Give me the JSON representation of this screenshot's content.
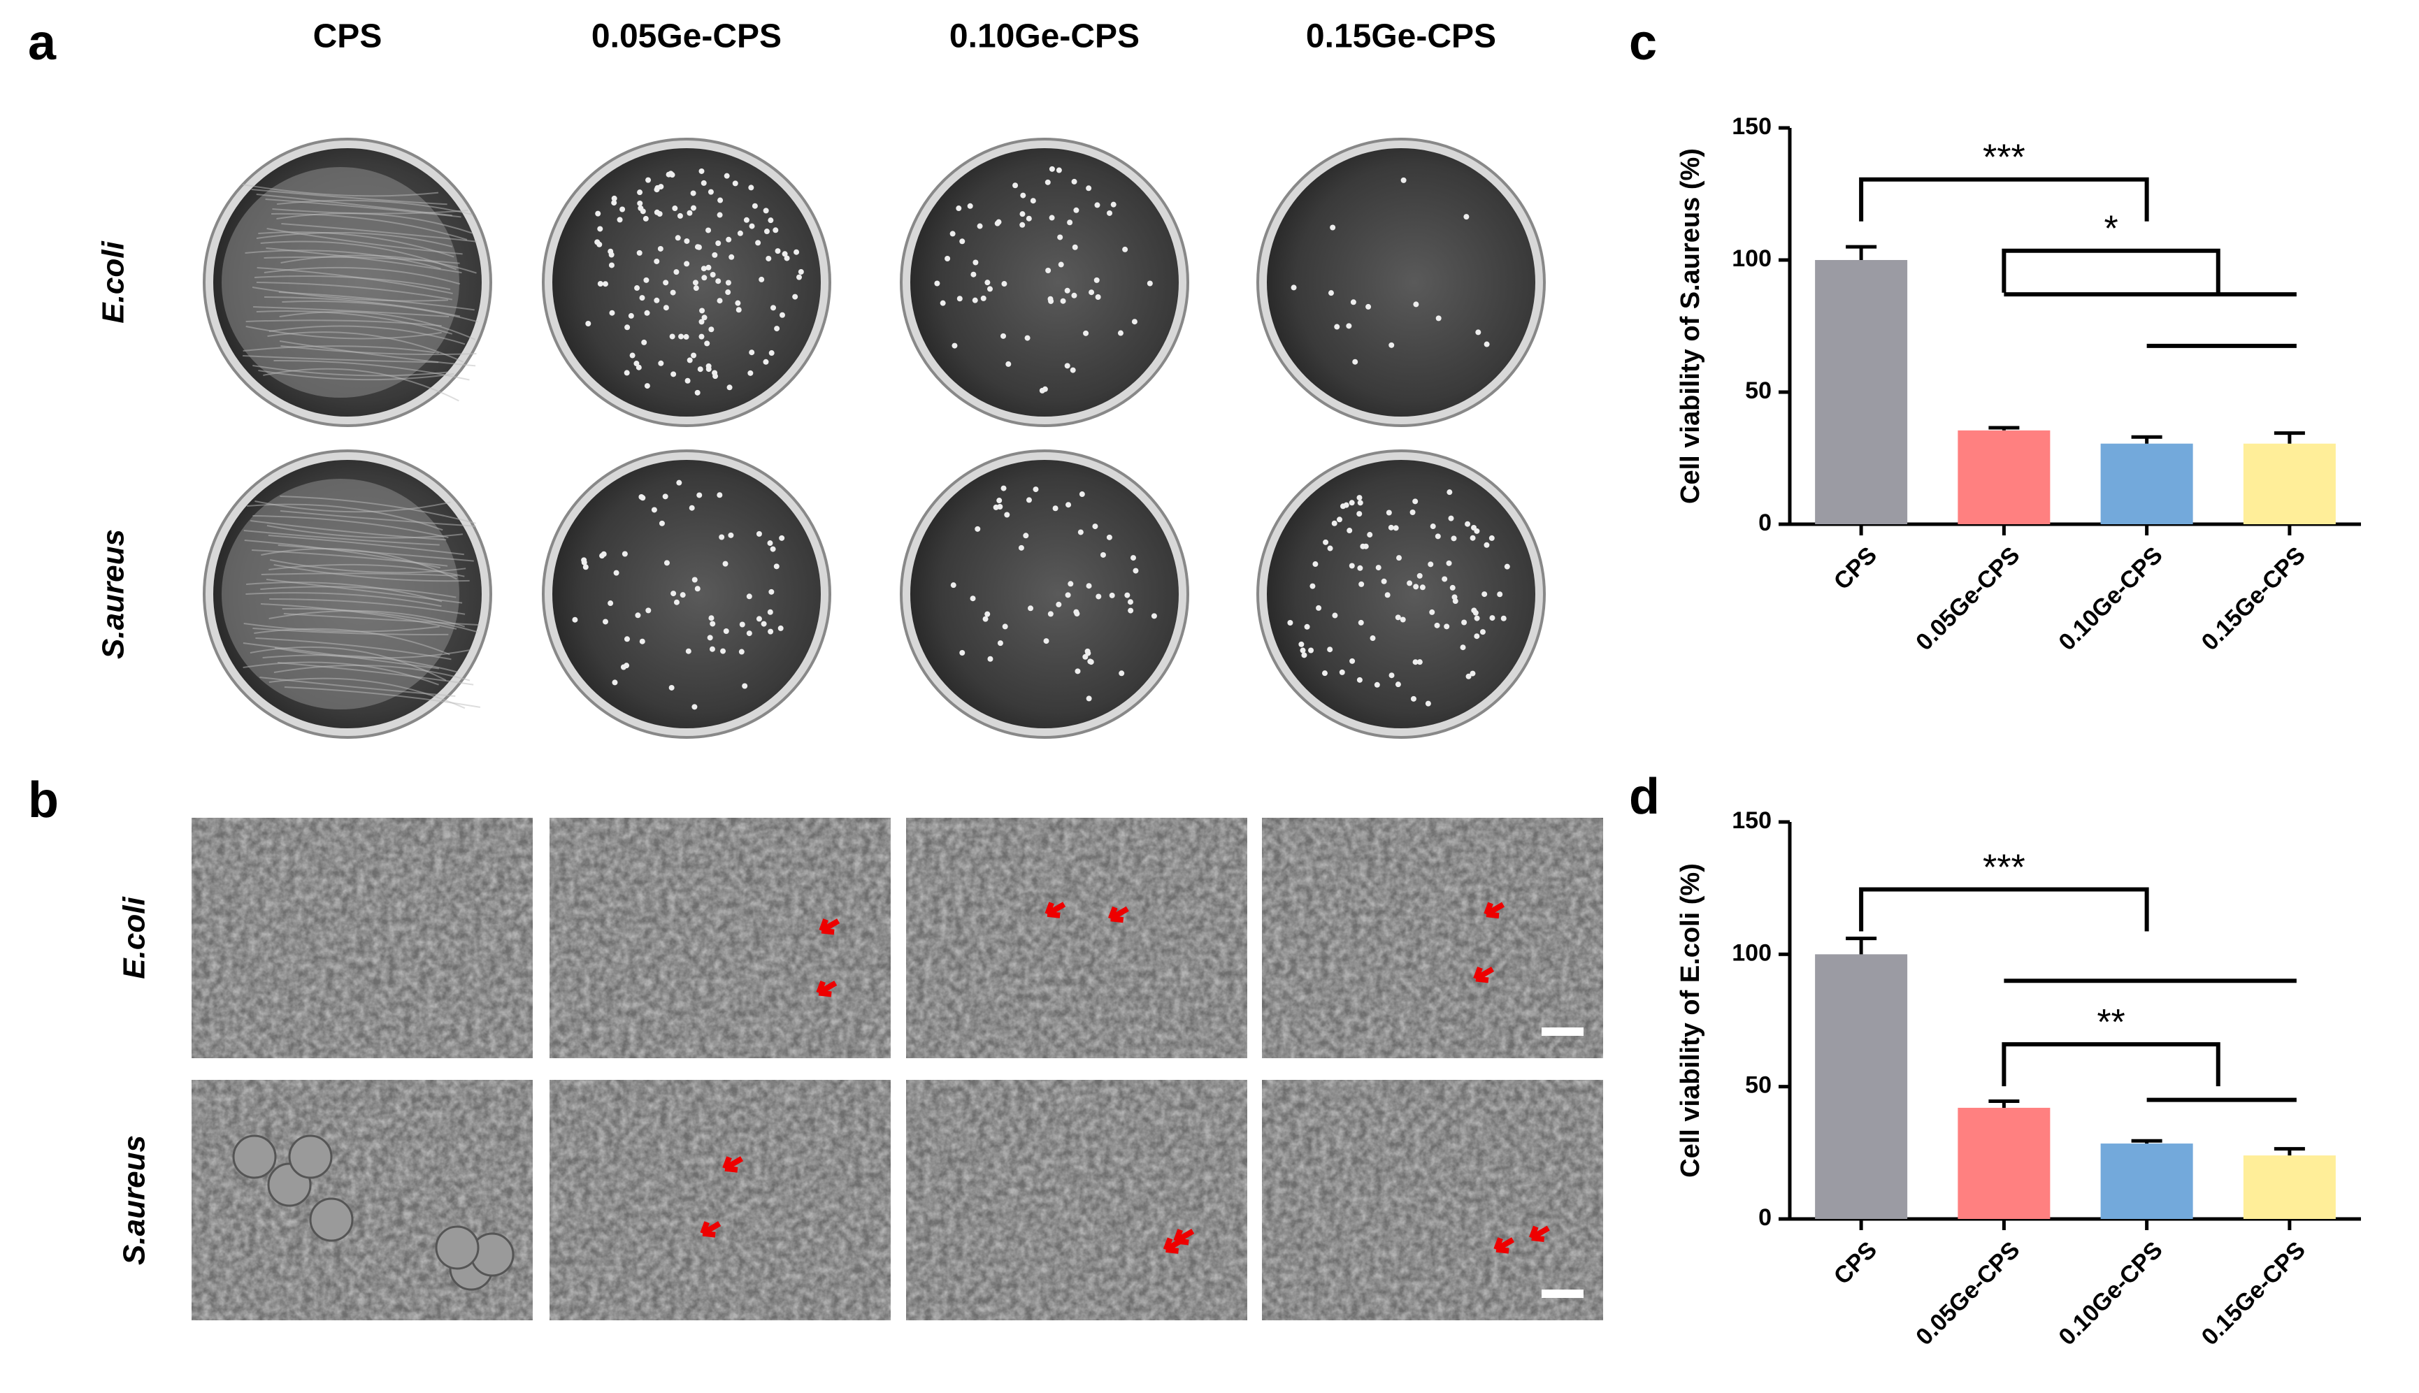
{
  "panels": {
    "a": "a",
    "b": "b",
    "c": "c",
    "d": "d"
  },
  "columns": [
    "CPS",
    "0.05Ge-CPS",
    "0.10Ge-CPS",
    "0.15Ge-CPS"
  ],
  "rows": [
    "E.coli",
    "S.aureus"
  ],
  "chart_data": [
    {
      "type": "bar",
      "y_label": "Cell viability of S.aureus (%)",
      "categories": [
        "CPS",
        "0.05Ge-CPS",
        "0.10Ge-CPS",
        "0.15Ge-CPS"
      ],
      "values": [
        100,
        35.5,
        30.5,
        30.5
      ],
      "errors": [
        5,
        1,
        2.5,
        4
      ],
      "colors": [
        "#9b9ba3",
        "#ff8080",
        "#73a9db",
        "#ffee99"
      ],
      "ylim": [
        0,
        150
      ],
      "yticks": [
        0,
        50,
        100,
        150
      ],
      "annotations": [
        "***",
        "*"
      ]
    },
    {
      "type": "bar",
      "y_label": "Cell viability of E.coli (%)",
      "categories": [
        "CPS",
        "0.05Ge-CPS",
        "0.10Ge-CPS",
        "0.15Ge-CPS"
      ],
      "values": [
        100,
        42,
        28.5,
        24
      ],
      "errors": [
        6,
        2.5,
        1,
        2.5
      ],
      "colors": [
        "#9b9ba3",
        "#ff8080",
        "#73a9db",
        "#ffee99"
      ],
      "ylim": [
        0,
        150
      ],
      "yticks": [
        0,
        50,
        100,
        150
      ],
      "annotations": [
        "***",
        "**"
      ]
    }
  ]
}
